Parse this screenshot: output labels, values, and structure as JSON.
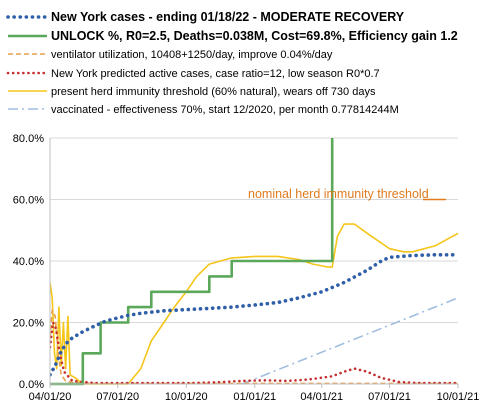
{
  "chart_data": {
    "type": "line",
    "xlim": [
      "2020-04-01",
      "2021-10-01"
    ],
    "ylim": [
      0,
      80
    ],
    "y_unit": "%",
    "grid": "horizontal",
    "legend_position": "top",
    "x_ticks": [
      "04/01/20",
      "07/01/20",
      "10/01/20",
      "01/01/21",
      "04/01/21",
      "07/01/21",
      "10/01/21"
    ],
    "y_ticks": [
      "0.0%",
      "20.0%",
      "40.0%",
      "60.0%",
      "80.0%"
    ],
    "annotation": "nominal herd immunity threshold",
    "series": [
      {
        "name": "New York cases - ending 01/18/22 - MODERATE RECOVERY",
        "color": "#2E5FA8",
        "style": "dotted",
        "bold": true,
        "points": [
          [
            "2020-04-01",
            3
          ],
          [
            "2020-04-08",
            6
          ],
          [
            "2020-04-15",
            10
          ],
          [
            "2020-04-22",
            13
          ],
          [
            "2020-05-01",
            15
          ],
          [
            "2020-05-15",
            17
          ],
          [
            "2020-06-01",
            19
          ],
          [
            "2020-06-15",
            20.5
          ],
          [
            "2020-07-01",
            21.5
          ],
          [
            "2020-07-15",
            22.3
          ],
          [
            "2020-08-01",
            23
          ],
          [
            "2020-09-01",
            23.8
          ],
          [
            "2020-10-01",
            24.2
          ],
          [
            "2020-11-01",
            24.6
          ],
          [
            "2020-12-01",
            25
          ],
          [
            "2021-01-01",
            25.7
          ],
          [
            "2021-02-01",
            26.5
          ],
          [
            "2021-03-01",
            28
          ],
          [
            "2021-04-01",
            30
          ],
          [
            "2021-05-01",
            33
          ],
          [
            "2021-06-01",
            37
          ],
          [
            "2021-06-20",
            40
          ],
          [
            "2021-07-01",
            41.2
          ],
          [
            "2021-08-01",
            41.8
          ],
          [
            "2021-09-01",
            42
          ],
          [
            "2021-10-01",
            42
          ]
        ]
      },
      {
        "name": "UNLOCK %, R0=2.5, Deaths=0.038M, Cost=69.8%, Efficiency gain 1.2",
        "color": "#5BA85B",
        "style": "solid",
        "bold": true,
        "points": [
          [
            "2020-04-01",
            0
          ],
          [
            "2020-05-15",
            0
          ],
          [
            "2020-05-15",
            10
          ],
          [
            "2020-06-08",
            10
          ],
          [
            "2020-06-08",
            20
          ],
          [
            "2020-07-15",
            20
          ],
          [
            "2020-07-15",
            25
          ],
          [
            "2020-08-15",
            25
          ],
          [
            "2020-08-15",
            30
          ],
          [
            "2020-11-01",
            30
          ],
          [
            "2020-11-01",
            35
          ],
          [
            "2020-12-01",
            35
          ],
          [
            "2020-12-01",
            40
          ],
          [
            "2021-04-15",
            40
          ],
          [
            "2021-04-15",
            80
          ]
        ]
      },
      {
        "name": "ventilator utilization,  10408+1250/day, improve 0.04%/day",
        "color": "#E8A050",
        "style": "dashed",
        "bold": false,
        "points": [
          [
            "2020-04-01",
            15
          ],
          [
            "2020-04-04",
            24
          ],
          [
            "2020-04-08",
            22
          ],
          [
            "2020-04-12",
            10
          ],
          [
            "2020-04-16",
            3
          ],
          [
            "2020-04-22",
            1
          ],
          [
            "2020-05-01",
            0.5
          ],
          [
            "2020-06-01",
            0.2
          ],
          [
            "2021-10-01",
            0.2
          ]
        ]
      },
      {
        "name": "New York predicted active cases, case ratio=12, low season R0*0.7",
        "color": "#C43030",
        "style": "dotted",
        "bold": false,
        "points": [
          [
            "2020-04-01",
            12
          ],
          [
            "2020-04-05",
            20
          ],
          [
            "2020-04-09",
            18
          ],
          [
            "2020-04-14",
            10
          ],
          [
            "2020-04-20",
            4
          ],
          [
            "2020-05-01",
            1
          ],
          [
            "2020-06-01",
            0.3
          ],
          [
            "2020-10-01",
            0.3
          ],
          [
            "2020-11-15",
            0.6
          ],
          [
            "2020-12-15",
            1
          ],
          [
            "2021-01-15",
            1.2
          ],
          [
            "2021-02-15",
            1
          ],
          [
            "2021-03-15",
            1.5
          ],
          [
            "2021-04-15",
            2.5
          ],
          [
            "2021-05-01",
            4
          ],
          [
            "2021-05-15",
            5
          ],
          [
            "2021-06-01",
            4
          ],
          [
            "2021-06-20",
            2
          ],
          [
            "2021-07-15",
            0.6
          ],
          [
            "2021-08-15",
            0.3
          ],
          [
            "2021-10-01",
            0.3
          ]
        ]
      },
      {
        "name": "present herd immunity  threshold (60% natural), wears off 730 days",
        "color": "#F5C518",
        "style": "solid",
        "bold": false,
        "points": [
          [
            "2020-04-01",
            33
          ],
          [
            "2020-04-04",
            28
          ],
          [
            "2020-04-07",
            10
          ],
          [
            "2020-04-10",
            5
          ],
          [
            "2020-04-13",
            25
          ],
          [
            "2020-04-16",
            6
          ],
          [
            "2020-04-19",
            20
          ],
          [
            "2020-04-22",
            5
          ],
          [
            "2020-04-25",
            22
          ],
          [
            "2020-04-28",
            3
          ],
          [
            "2020-05-05",
            2
          ],
          [
            "2020-05-15",
            0
          ],
          [
            "2020-06-01",
            0
          ],
          [
            "2020-07-15",
            0
          ],
          [
            "2020-08-01",
            5
          ],
          [
            "2020-08-15",
            14
          ],
          [
            "2020-09-01",
            20
          ],
          [
            "2020-09-15",
            25
          ],
          [
            "2020-10-01",
            30
          ],
          [
            "2020-10-15",
            35
          ],
          [
            "2020-11-01",
            39
          ],
          [
            "2020-12-01",
            41
          ],
          [
            "2021-01-01",
            41.5
          ],
          [
            "2021-02-01",
            41.5
          ],
          [
            "2021-03-01",
            40.5
          ],
          [
            "2021-03-20",
            39
          ],
          [
            "2021-04-10",
            38
          ],
          [
            "2021-04-15",
            38
          ],
          [
            "2021-04-22",
            48
          ],
          [
            "2021-05-01",
            52
          ],
          [
            "2021-05-15",
            52
          ],
          [
            "2021-06-01",
            49
          ],
          [
            "2021-07-01",
            44
          ],
          [
            "2021-07-20",
            43
          ],
          [
            "2021-08-01",
            43
          ],
          [
            "2021-09-01",
            45
          ],
          [
            "2021-10-01",
            49
          ]
        ]
      },
      {
        "name": "vaccinated - effectiveness 70%, start 12/2020, per month 0.77814244M",
        "color": "#A0BEE0",
        "style": "dashdot",
        "bold": false,
        "points": [
          [
            "2020-12-15",
            0
          ],
          [
            "2021-10-01",
            28
          ]
        ]
      }
    ]
  }
}
